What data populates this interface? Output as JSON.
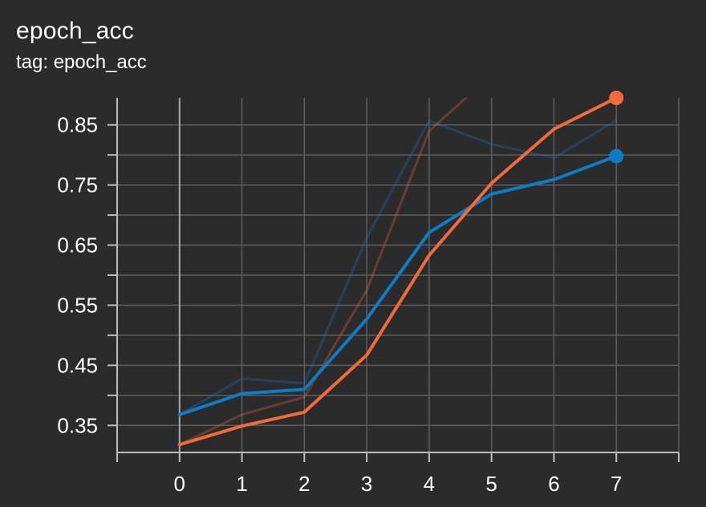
{
  "header": {
    "title": "epoch_acc",
    "subtitle": "tag: epoch_acc"
  },
  "colors": {
    "background": "#2b2b2b",
    "grid": "#5e5e5e",
    "axis": "#bdbdbd",
    "series_blue": "#0c7cc7",
    "series_orange": "#f26a3b"
  },
  "chart_data": {
    "type": "line",
    "title": "epoch_acc",
    "subtitle": "tag: epoch_acc",
    "xlabel": "",
    "ylabel": "",
    "xlim": [
      -1,
      8
    ],
    "ylim": [
      0.305,
      0.895
    ],
    "x_ticks": [
      0,
      1,
      2,
      3,
      4,
      5,
      6,
      7
    ],
    "y_ticks": [
      0.35,
      0.45,
      0.55,
      0.65,
      0.75,
      0.85
    ],
    "y_tick_labels": [
      "0.35",
      "0.45",
      "0.55",
      "0.65",
      "0.75",
      "0.85"
    ],
    "grid": true,
    "legend": "none",
    "smoothed_series": [
      {
        "color": "#0c7cc7",
        "x": [
          0,
          1,
          2,
          3,
          4,
          5,
          6,
          7
        ],
        "y": [
          0.368,
          0.403,
          0.41,
          0.527,
          0.671,
          0.735,
          0.759,
          0.798
        ]
      },
      {
        "color": "#f26a3b",
        "x": [
          0,
          1,
          2,
          3,
          4,
          5,
          6,
          7
        ],
        "y": [
          0.318,
          0.349,
          0.372,
          0.467,
          0.633,
          0.753,
          0.843,
          0.895
        ]
      }
    ],
    "raw_series": [
      {
        "color": "#0c7cc7",
        "x": [
          0,
          1,
          2,
          3,
          4,
          5,
          6,
          7
        ],
        "y": [
          0.368,
          0.428,
          0.42,
          0.662,
          0.857,
          0.818,
          0.795,
          0.858
        ]
      },
      {
        "color": "#f26a3b",
        "x": [
          0,
          1,
          2,
          3,
          4,
          4.7
        ],
        "y": [
          0.318,
          0.368,
          0.397,
          0.575,
          0.84,
          0.905
        ]
      }
    ]
  }
}
